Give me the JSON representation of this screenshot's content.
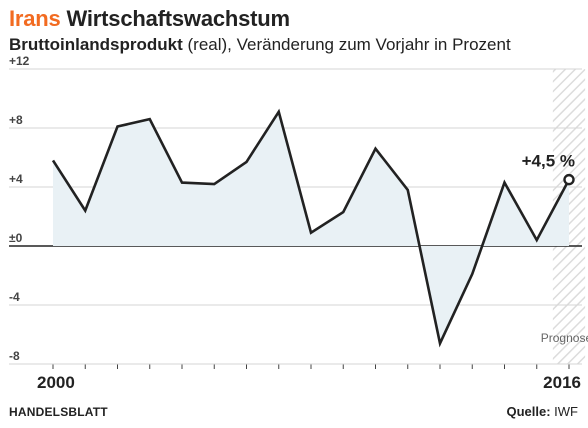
{
  "header": {
    "title_accent": "Irans",
    "title_rest": "Wirtschaftswachstum",
    "subtitle_bold": "Bruttoinlandsprodukt",
    "subtitle_rest": "(real), Veränderung zum Vorjahr in Prozent"
  },
  "footer": {
    "brand": "HANDELSBLATT",
    "source_label": "Quelle:",
    "source_value": "IWF"
  },
  "chart_data": {
    "type": "line",
    "x": [
      2000,
      2001,
      2002,
      2003,
      2004,
      2005,
      2006,
      2007,
      2008,
      2009,
      2010,
      2011,
      2012,
      2013,
      2014,
      2015,
      2016
    ],
    "series": [
      {
        "values": [
          5.8,
          2.4,
          8.1,
          8.6,
          4.3,
          4.2,
          5.7,
          9.1,
          0.9,
          2.3,
          6.6,
          3.8,
          -6.6,
          -1.9,
          4.3,
          0.4,
          4.5
        ]
      }
    ],
    "ylim": [
      -8,
      12
    ],
    "y_ticks": [
      {
        "value": 12,
        "label": "+12"
      },
      {
        "value": 8,
        "label": "+8"
      },
      {
        "value": 4,
        "label": "+4"
      },
      {
        "value": 0,
        "label": "±0"
      },
      {
        "value": -4,
        "label": "-4"
      },
      {
        "value": -8,
        "label": "-8"
      }
    ],
    "x_tick_labels": [
      {
        "value": 2000,
        "label": "2000"
      },
      {
        "value": 2016,
        "label": "2016"
      }
    ],
    "annotation": {
      "x": 2016,
      "label": "+4,5 %"
    },
    "forecast": {
      "from": 2015.5,
      "to": 2016.5,
      "label": "Prognose"
    },
    "grid": true,
    "colors": {
      "line": "#222222",
      "area": "#e9f1f5",
      "grid": "#d6d6d6",
      "zero": "#222222",
      "accent": "#f26b21",
      "forecast_hatch": "#d9d9d9"
    }
  }
}
